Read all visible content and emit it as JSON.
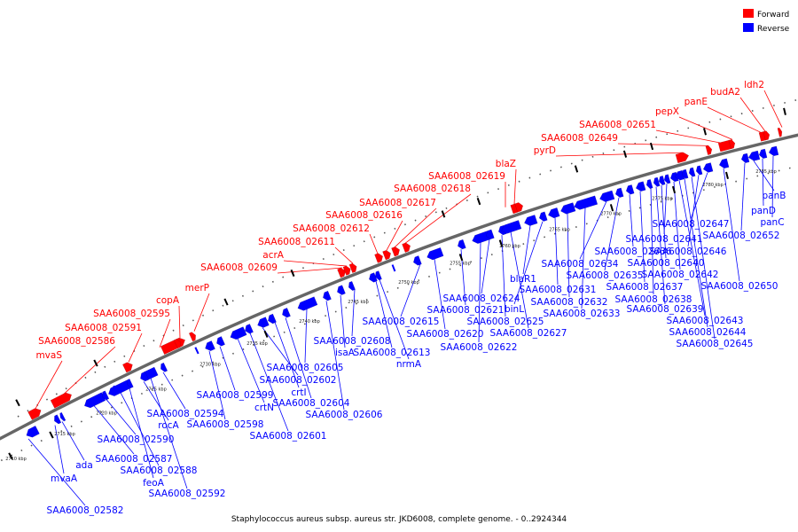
{
  "caption": "Staphylococcus aureus subsp. aureus str. JKD6008, complete genome. - 0..2924344",
  "legend": {
    "forward": "Forward",
    "reverse": "Reverse"
  },
  "colors": {
    "forward": "#ff0000",
    "reverse": "#0000ff",
    "backbone": "#666666"
  },
  "scale_ticks": [
    "2710 kbp",
    "2715 kbp",
    "2720 kbp",
    "2725 kbp",
    "2730 kbp",
    "2735 kbp",
    "2740 kbp",
    "2745 kbp",
    "2750 kbp",
    "2755 kbp",
    "2760 kbp",
    "2765 kbp",
    "2770 kbp",
    "2775 kbp",
    "2780 kbp",
    "2785 kbp"
  ],
  "forward_genes": [
    "mvaS",
    "SAA6008_02586",
    "SAA6008_02591",
    "SAA6008_02595",
    "copA",
    "merP",
    "SAA6008_02609",
    "acrA",
    "SAA6008_02611",
    "SAA6008_02612",
    "SAA6008_02616",
    "SAA6008_02617",
    "SAA6008_02618",
    "SAA6008_02619",
    "blaZ",
    "pyrD",
    "SAA6008_02649",
    "SAA6008_02651",
    "pepX",
    "panE",
    "budA2",
    "ldh2"
  ],
  "reverse_genes": [
    "SAA6008_02582",
    "mvaA",
    "ada",
    "feoA",
    "SAA6008_02592",
    "SAA6008_02587",
    "SAA6008_02588",
    "SAA6008_02590",
    "rocA",
    "SAA6008_02594",
    "SAA6008_02598",
    "SAA6008_02599",
    "crtN",
    "SAA6008_02601",
    "SAA6008_02602",
    "crtI",
    "SAA6008_02604",
    "SAA6008_02605",
    "SAA6008_02606",
    "isaA",
    "SAA6008_02608",
    "SAA6008_02613",
    "nrmA",
    "SAA6008_02615",
    "SAA6008_02620",
    "SAA6008_02621",
    "SAA6008_02622",
    "SAA6008_02624",
    "SAA6008_02625",
    "SAA6008_02627",
    "blaR1",
    "binL",
    "SAA6008_02631",
    "SAA6008_02632",
    "SAA6008_02633",
    "SAA6008_02634",
    "SAA6008_02635",
    "SAA6008_02636",
    "SAA6008_02637",
    "SAA6008_02638",
    "SAA6008_02639",
    "SAA6008_02640",
    "SAA6008_02641",
    "SAA6008_02642",
    "SAA6008_02643",
    "SAA6008_02644",
    "SAA6008_02645",
    "SAA6008_02646",
    "SAA6008_02647",
    "SAA6008_02650",
    "SAA6008_02652",
    "panB",
    "panD",
    "panC"
  ]
}
